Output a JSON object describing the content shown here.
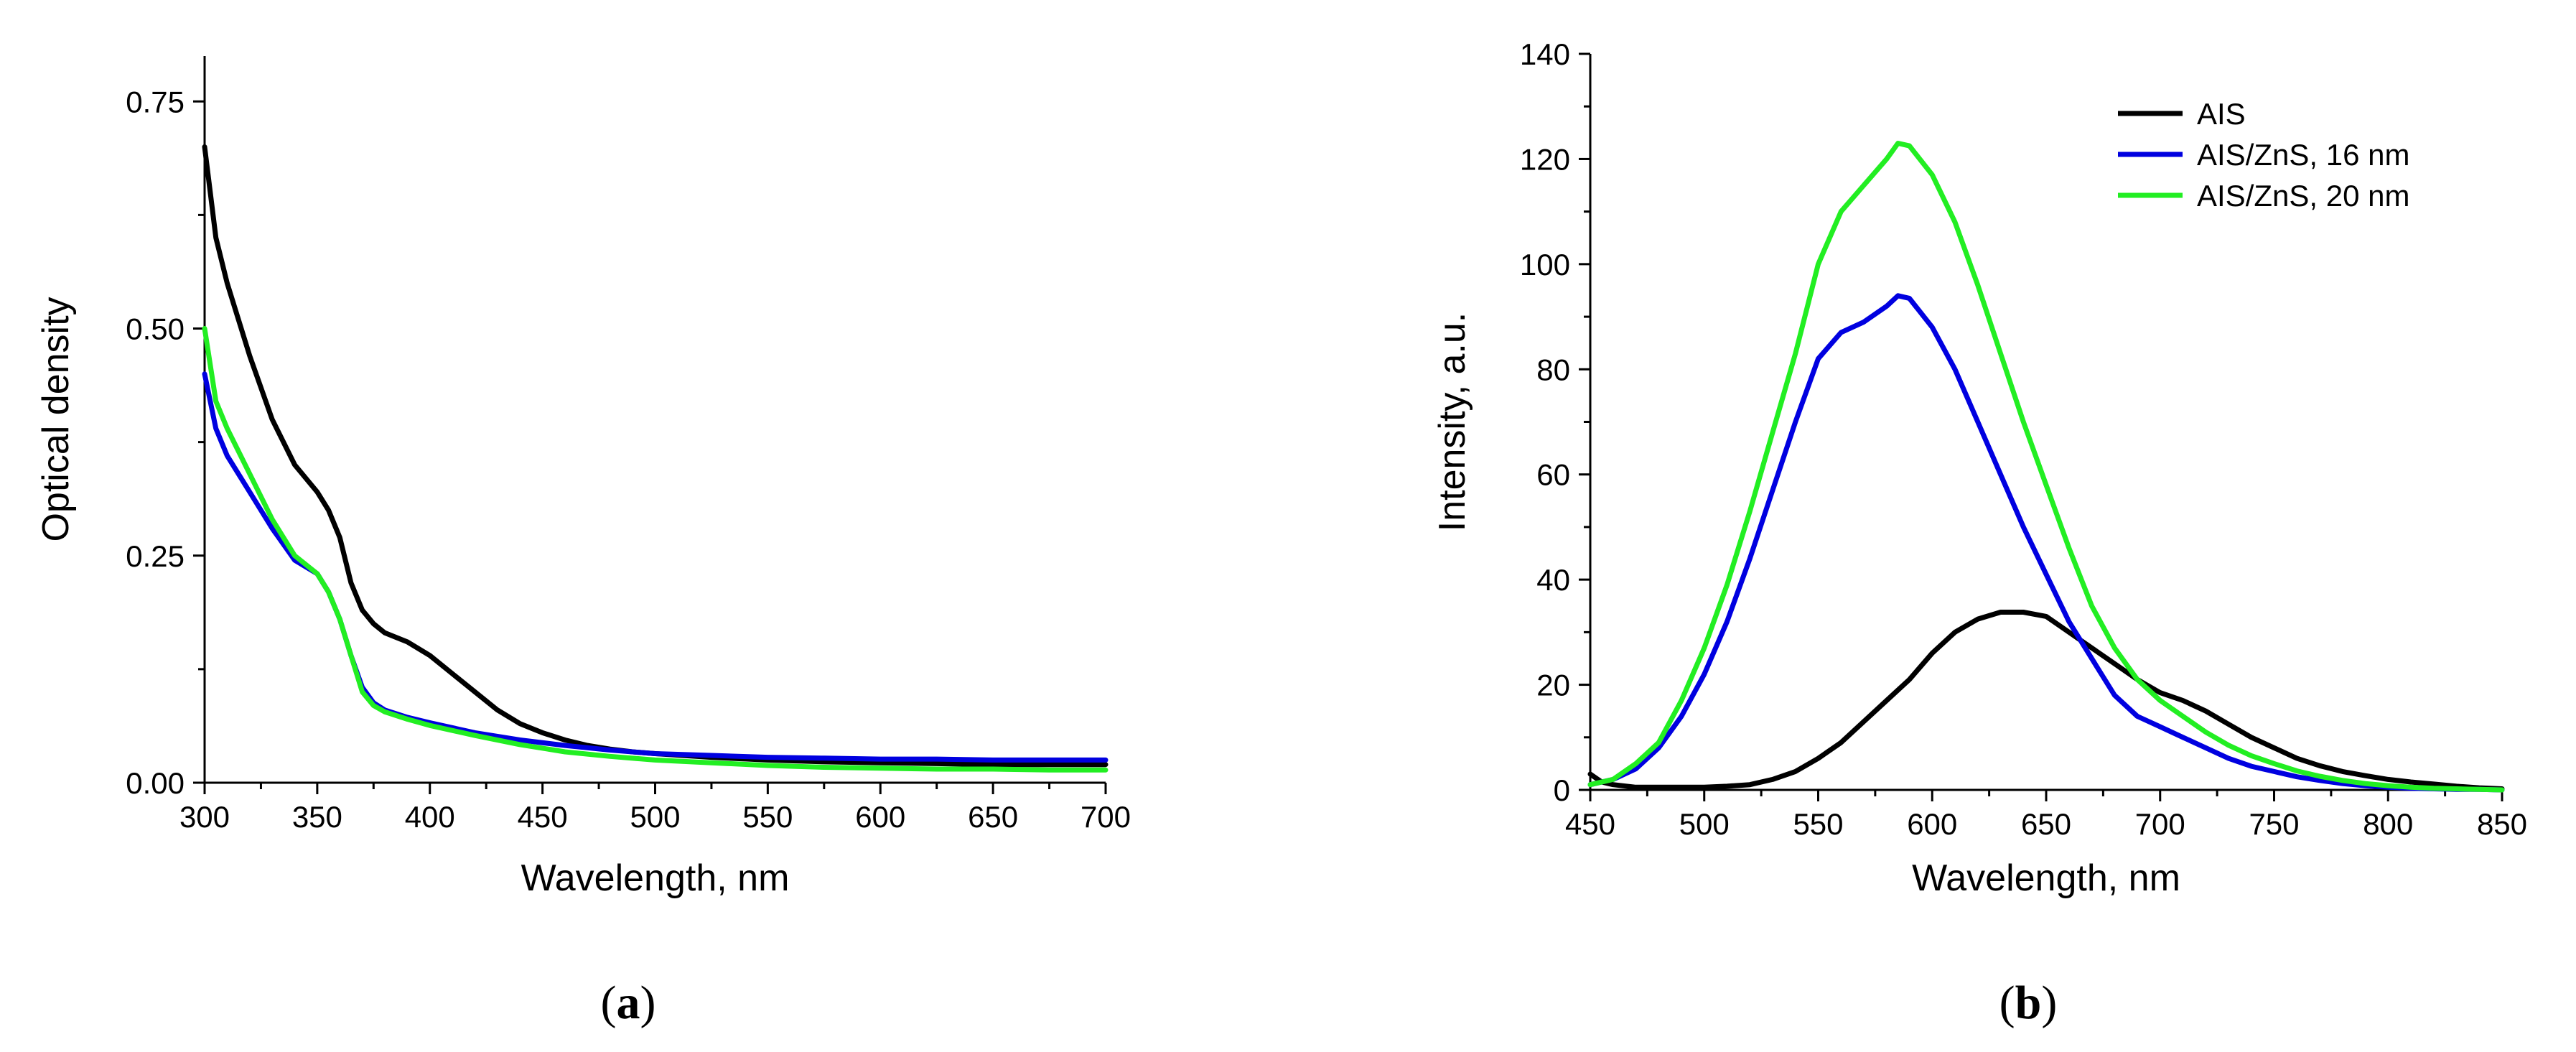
{
  "chart_data": [
    {
      "type": "line",
      "panel": "a",
      "xlabel": "Wavelength, nm",
      "ylabel": "Optical density",
      "xlim": [
        300,
        700
      ],
      "ylim": [
        0.0,
        0.8
      ],
      "xticks": [
        300,
        350,
        400,
        450,
        500,
        550,
        600,
        650,
        700
      ],
      "xtick_labels": [
        "300",
        "350",
        "400",
        "450",
        "500",
        "550",
        "600",
        "650",
        "700"
      ],
      "yticks": [
        0.0,
        0.25,
        0.5,
        0.75
      ],
      "ytick_labels": [
        "0.00",
        "0.25",
        "0.50",
        "0.75"
      ],
      "series": [
        {
          "name": "AIS",
          "color": "#000000",
          "x": [
            300,
            305,
            310,
            320,
            330,
            340,
            350,
            355,
            360,
            365,
            370,
            375,
            380,
            390,
            400,
            410,
            420,
            430,
            440,
            450,
            460,
            470,
            480,
            490,
            500,
            525,
            550,
            575,
            600,
            625,
            650,
            675,
            700
          ],
          "y": [
            0.7,
            0.6,
            0.55,
            0.47,
            0.4,
            0.35,
            0.32,
            0.3,
            0.27,
            0.22,
            0.19,
            0.175,
            0.165,
            0.155,
            0.14,
            0.12,
            0.1,
            0.08,
            0.065,
            0.055,
            0.047,
            0.041,
            0.037,
            0.034,
            0.032,
            0.028,
            0.025,
            0.023,
            0.022,
            0.021,
            0.02,
            0.02,
            0.02
          ]
        },
        {
          "name": "AIS/ZnS, 16 nm",
          "color": "#0000e0",
          "x": [
            300,
            305,
            310,
            320,
            330,
            340,
            350,
            355,
            360,
            365,
            370,
            375,
            380,
            390,
            400,
            420,
            440,
            460,
            480,
            500,
            525,
            550,
            575,
            600,
            625,
            650,
            675,
            700
          ],
          "y": [
            0.45,
            0.39,
            0.36,
            0.32,
            0.28,
            0.245,
            0.23,
            0.21,
            0.18,
            0.14,
            0.105,
            0.088,
            0.08,
            0.072,
            0.066,
            0.055,
            0.047,
            0.041,
            0.036,
            0.032,
            0.03,
            0.028,
            0.027,
            0.026,
            0.026,
            0.025,
            0.025,
            0.025
          ]
        },
        {
          "name": "AIS/ZnS, 20 nm",
          "color": "#22ee22",
          "x": [
            300,
            305,
            310,
            320,
            330,
            340,
            350,
            355,
            360,
            365,
            370,
            375,
            380,
            390,
            400,
            420,
            440,
            460,
            480,
            500,
            525,
            550,
            575,
            600,
            625,
            650,
            675,
            700
          ],
          "y": [
            0.5,
            0.42,
            0.39,
            0.34,
            0.29,
            0.25,
            0.23,
            0.21,
            0.18,
            0.14,
            0.1,
            0.085,
            0.078,
            0.07,
            0.063,
            0.052,
            0.042,
            0.034,
            0.029,
            0.025,
            0.022,
            0.019,
            0.017,
            0.016,
            0.015,
            0.015,
            0.014,
            0.014
          ]
        }
      ]
    },
    {
      "type": "line",
      "panel": "b",
      "xlabel": "Wavelength, nm",
      "ylabel": "Intensity, a.u.",
      "xlim": [
        450,
        850
      ],
      "ylim": [
        0,
        140
      ],
      "xticks": [
        450,
        500,
        550,
        600,
        650,
        700,
        750,
        800,
        850
      ],
      "xtick_labels": [
        "450",
        "500",
        "550",
        "600",
        "650",
        "700",
        "750",
        "800",
        "850"
      ],
      "yticks": [
        0,
        20,
        40,
        60,
        80,
        100,
        120,
        140
      ],
      "ytick_labels": [
        "0",
        "20",
        "40",
        "60",
        "80",
        "100",
        "120",
        "140"
      ],
      "legend_position": "top-right",
      "series": [
        {
          "name": "AIS",
          "color": "#000000",
          "x": [
            450,
            455,
            460,
            470,
            480,
            490,
            500,
            510,
            520,
            530,
            540,
            550,
            560,
            570,
            580,
            590,
            600,
            610,
            620,
            630,
            640,
            650,
            660,
            670,
            680,
            690,
            700,
            710,
            720,
            730,
            740,
            750,
            760,
            770,
            780,
            790,
            800,
            810,
            820,
            830,
            840,
            850
          ],
          "y": [
            3,
            1.5,
            1,
            0.5,
            0.5,
            0.5,
            0.5,
            0.7,
            1,
            2,
            3.5,
            6,
            9,
            13,
            17,
            21,
            26,
            30,
            32.5,
            33.8,
            33.8,
            33,
            30,
            27,
            24,
            21,
            18.5,
            17,
            15,
            12.5,
            10,
            8,
            6,
            4.6,
            3.5,
            2.7,
            2,
            1.5,
            1.1,
            0.7,
            0.4,
            0.2
          ]
        },
        {
          "name": "AIS/ZnS, 16 nm",
          "color": "#0000e0",
          "x": [
            450,
            460,
            470,
            480,
            490,
            500,
            510,
            520,
            530,
            540,
            550,
            560,
            570,
            580,
            585,
            590,
            600,
            610,
            620,
            630,
            640,
            650,
            660,
            670,
            680,
            690,
            700,
            710,
            720,
            730,
            740,
            750,
            760,
            770,
            780,
            790,
            800,
            810,
            820,
            830,
            840,
            850
          ],
          "y": [
            1,
            2,
            4,
            8,
            14,
            22,
            32,
            44,
            57,
            70,
            82,
            87,
            89,
            92,
            94,
            93.5,
            88,
            80,
            70,
            60,
            50,
            41,
            32,
            25,
            18,
            14,
            12,
            10,
            8,
            6,
            4.5,
            3.5,
            2.5,
            1.8,
            1.2,
            0.8,
            0.5,
            0.3,
            0.2,
            0.1,
            0.1,
            0
          ]
        },
        {
          "name": "AIS/ZnS, 20 nm",
          "color": "#22ee22",
          "x": [
            450,
            460,
            470,
            480,
            490,
            500,
            510,
            520,
            530,
            540,
            550,
            560,
            570,
            580,
            585,
            590,
            600,
            610,
            620,
            630,
            640,
            650,
            660,
            670,
            680,
            690,
            700,
            710,
            720,
            730,
            740,
            750,
            760,
            770,
            780,
            790,
            800,
            810,
            820,
            830,
            840,
            850
          ],
          "y": [
            1,
            2,
            5,
            9,
            17,
            27,
            39,
            53,
            68,
            83,
            100,
            110,
            115,
            120,
            123,
            122.5,
            117,
            108,
            96,
            83,
            70,
            58,
            46,
            35,
            27,
            21,
            17,
            14,
            11,
            8.5,
            6.5,
            5,
            3.6,
            2.6,
            1.8,
            1.2,
            0.8,
            0.5,
            0.3,
            0.2,
            0.1,
            0
          ]
        }
      ]
    }
  ],
  "panel_labels": {
    "a": "a",
    "b": "b",
    "open": "(",
    "close": ")"
  }
}
